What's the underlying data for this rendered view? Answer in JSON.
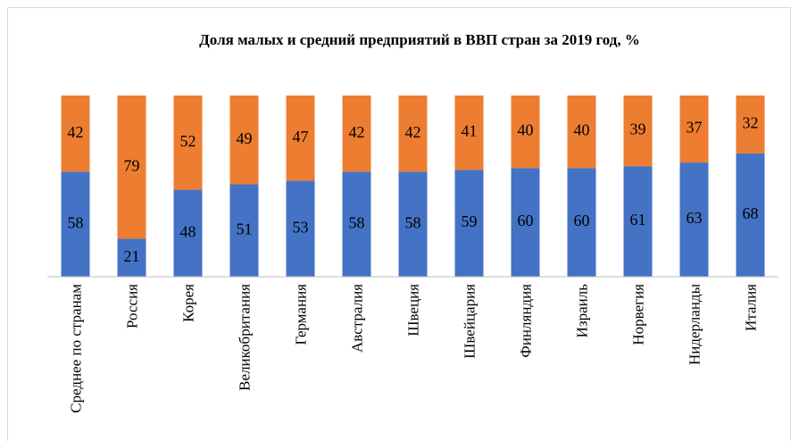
{
  "chart_data": {
    "type": "bar",
    "stacked": true,
    "title": "Доля малых и средний предприятий в ВВП стран за 2019 год, %",
    "categories": [
      "Среднее по странам",
      "Россия",
      "Корея",
      "Великобритания",
      "Германия",
      "Австралия",
      "Швеция",
      "Швейцария",
      "Финляндия",
      "Израиль",
      "Норвегия",
      "Нидерланды",
      "Италия"
    ],
    "series": [
      {
        "color": "#4472c4",
        "values": [
          58,
          21,
          48,
          51,
          53,
          58,
          58,
          59,
          60,
          60,
          61,
          63,
          68
        ]
      },
      {
        "color": "#ed7d31",
        "values": [
          42,
          79,
          52,
          49,
          47,
          42,
          42,
          41,
          40,
          40,
          39,
          37,
          32
        ]
      }
    ],
    "ylim": [
      0,
      100
    ]
  }
}
